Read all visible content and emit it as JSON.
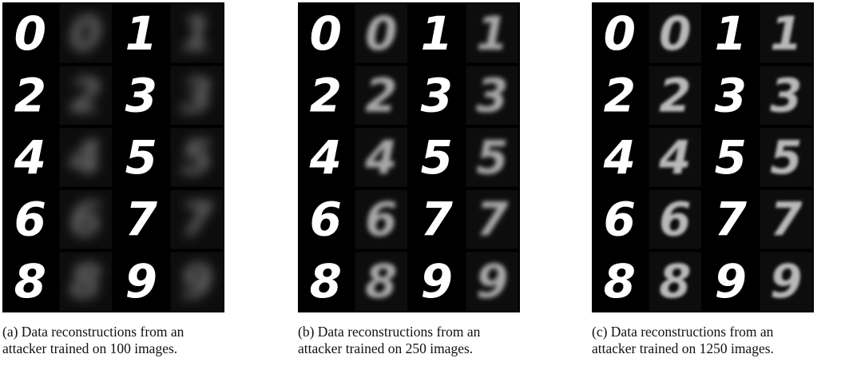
{
  "digits": [
    "0",
    "1",
    "2",
    "3",
    "4",
    "5",
    "6",
    "7",
    "8",
    "9"
  ],
  "panels": [
    {
      "caption": [
        "(a) Data reconstructions from an",
        "attacker trained on 100 images."
      ]
    },
    {
      "caption": [
        "(b) Data reconstructions from an",
        "attacker trained on 250 images."
      ]
    },
    {
      "caption": [
        "(c) Data reconstructions from an",
        "attacker trained on 1250 images."
      ]
    }
  ]
}
